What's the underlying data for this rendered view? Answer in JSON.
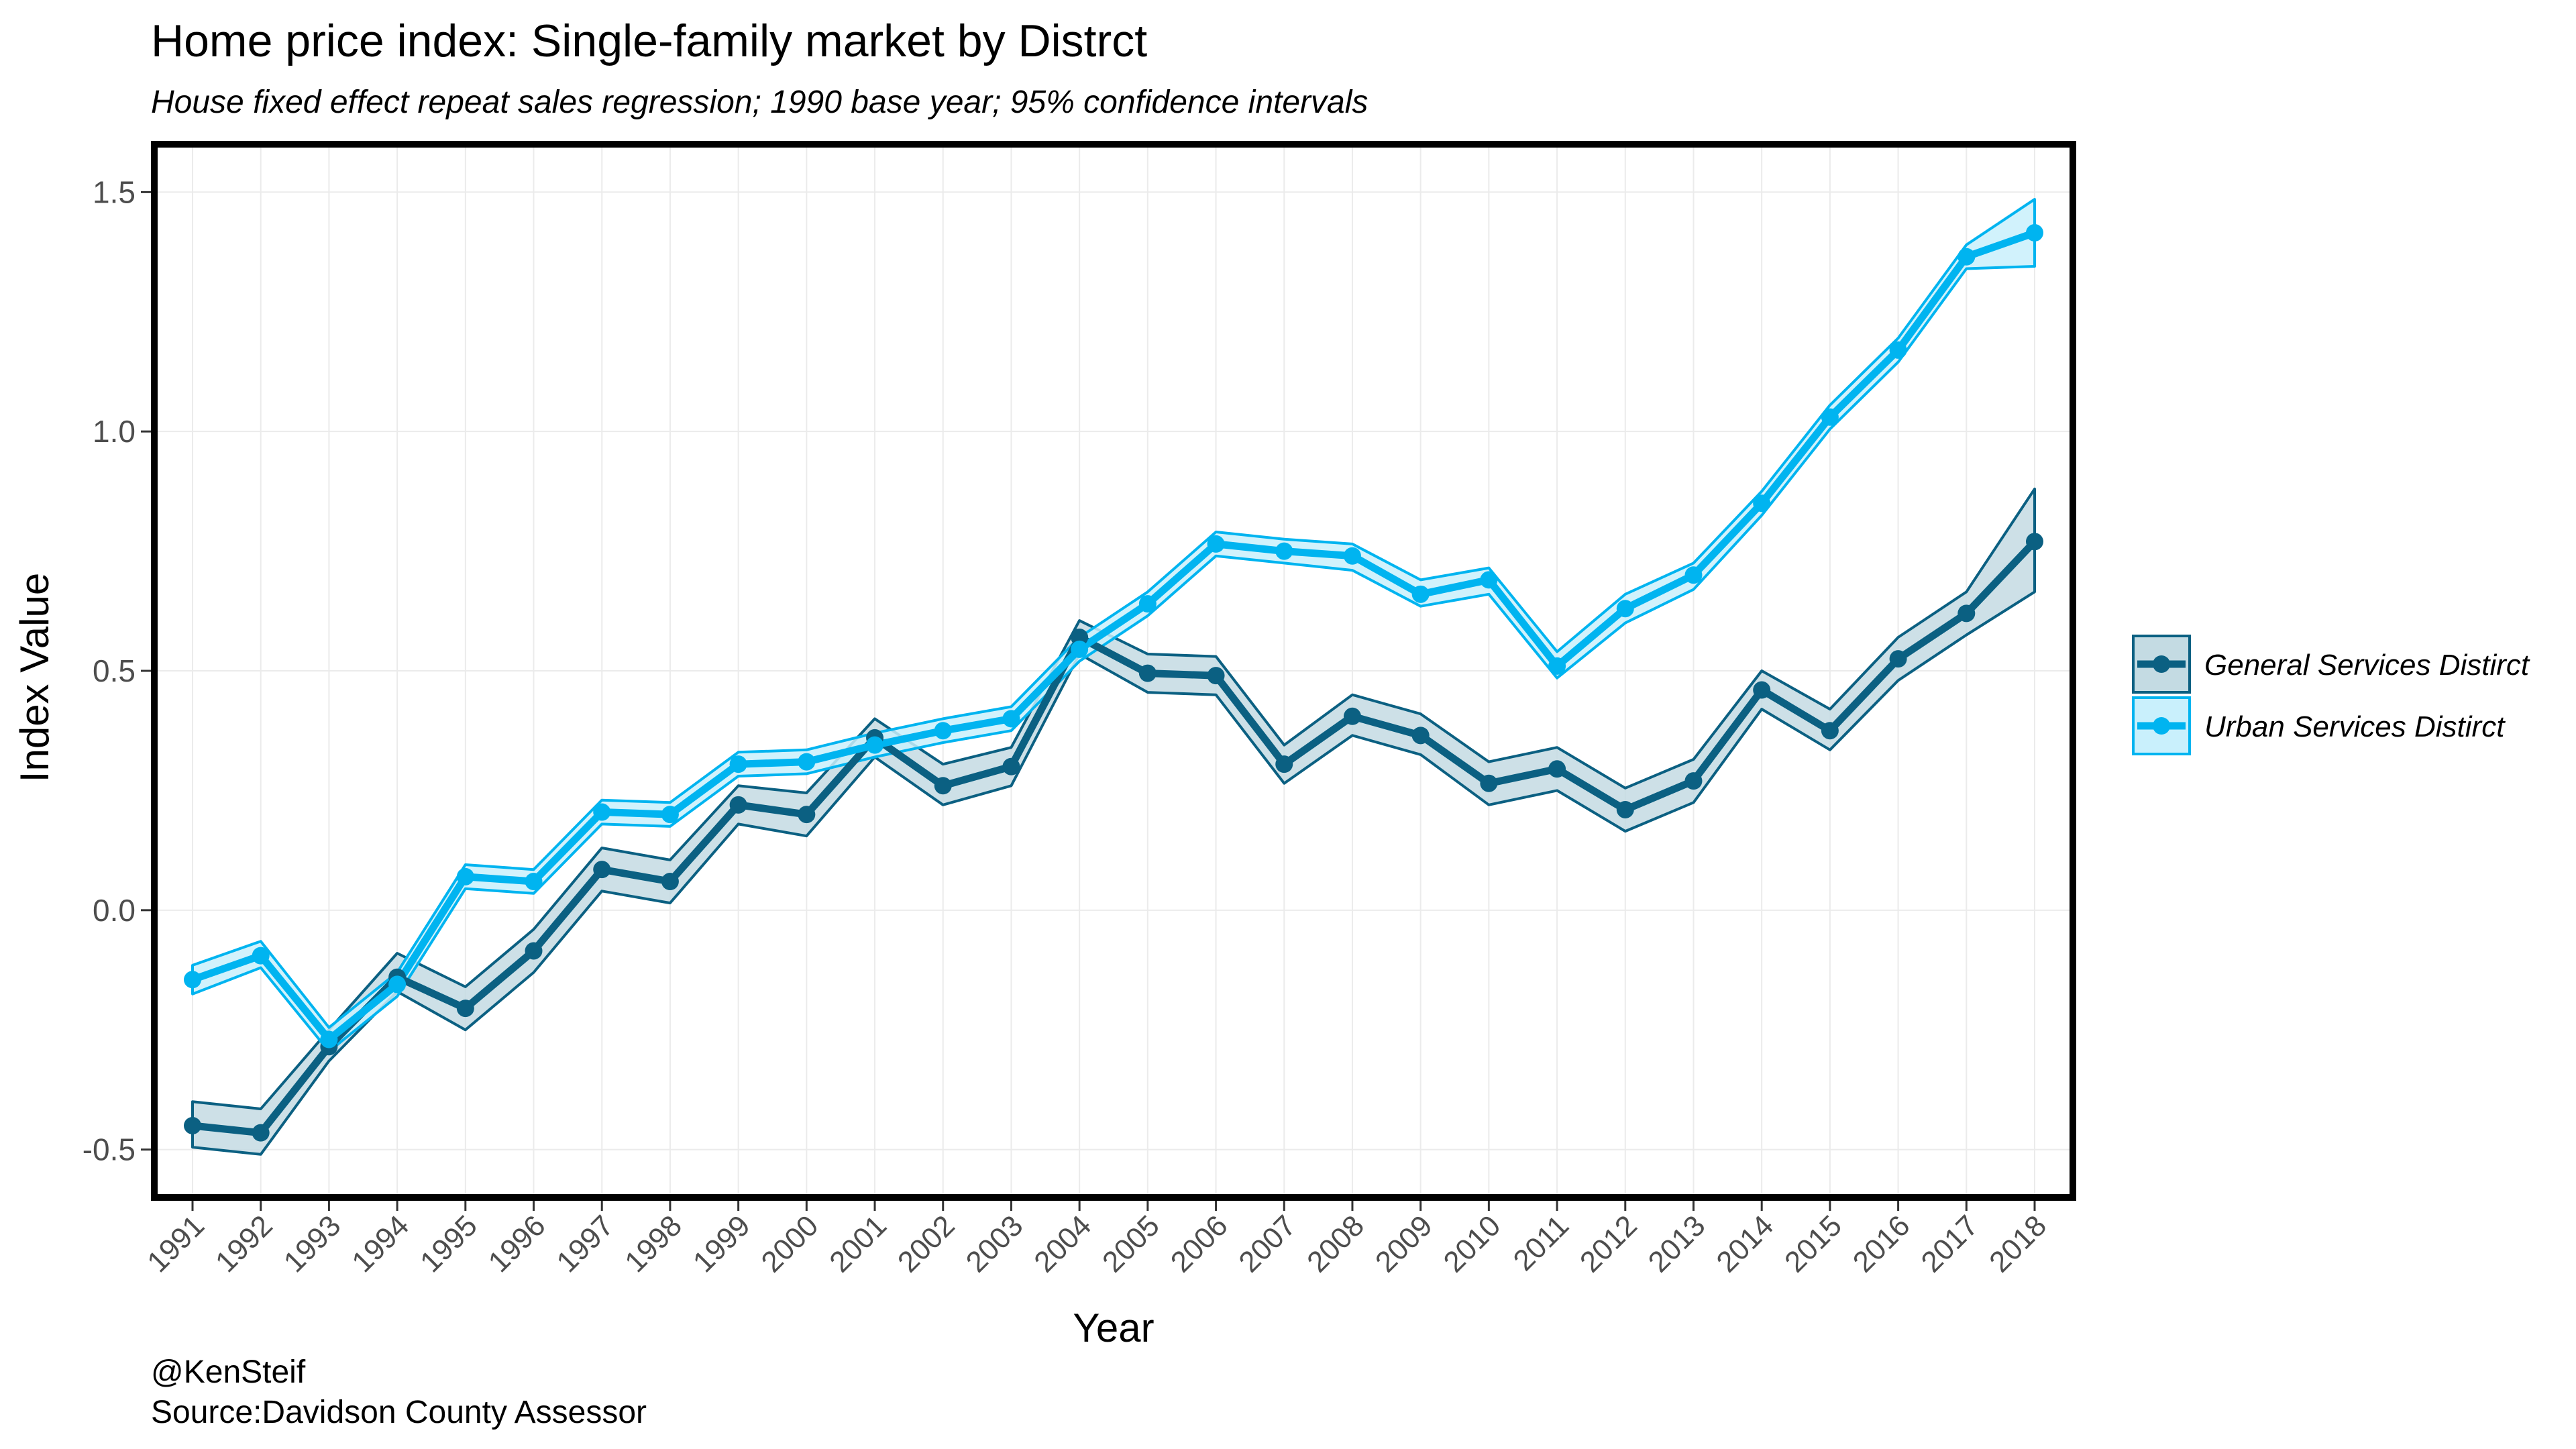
{
  "chart_data": {
    "type": "line",
    "title": "Home price index: Single-family market by Distrct",
    "subtitle": "House fixed effect repeat sales regression; 1990 base year; 95% confidence intervals",
    "xlabel": "Year",
    "ylabel": "Index Value",
    "ylim": [
      -0.6,
      1.6
    ],
    "yticks": [
      -0.5,
      0.0,
      0.5,
      1.0,
      1.5
    ],
    "ytick_labels": [
      "-0.5",
      "0.0",
      "0.5",
      "1.0",
      "1.5"
    ],
    "x": [
      1991,
      1992,
      1993,
      1994,
      1995,
      1996,
      1997,
      1998,
      1999,
      2000,
      2001,
      2002,
      2003,
      2004,
      2005,
      2006,
      2007,
      2008,
      2009,
      2010,
      2011,
      2012,
      2013,
      2014,
      2015,
      2016,
      2017,
      2018
    ],
    "xtick_labels": [
      "1991",
      "1992",
      "1993",
      "1994",
      "1995",
      "1996",
      "1997",
      "1998",
      "1999",
      "2000",
      "2001",
      "2002",
      "2003",
      "2004",
      "2005",
      "2006",
      "2007",
      "2008",
      "2009",
      "2010",
      "2011",
      "2012",
      "2013",
      "2014",
      "2015",
      "2016",
      "2017",
      "2018"
    ],
    "grid": true,
    "legend_position": "right",
    "series": [
      {
        "name": "General Services Distirct",
        "color": "#0b6082",
        "fill": "#c4dbe3",
        "values": [
          -0.45,
          -0.465,
          -0.285,
          -0.14,
          -0.205,
          -0.085,
          0.085,
          0.06,
          0.22,
          0.2,
          0.36,
          0.26,
          0.3,
          0.57,
          0.495,
          0.49,
          0.305,
          0.405,
          0.365,
          0.265,
          0.295,
          0.21,
          0.27,
          0.46,
          0.375,
          0.525,
          0.62,
          0.77
        ],
        "lower": [
          -0.495,
          -0.51,
          -0.315,
          -0.17,
          -0.25,
          -0.13,
          0.04,
          0.015,
          0.18,
          0.155,
          0.32,
          0.22,
          0.26,
          0.535,
          0.455,
          0.45,
          0.265,
          0.365,
          0.325,
          0.22,
          0.25,
          0.165,
          0.225,
          0.42,
          0.335,
          0.48,
          0.575,
          0.665
        ],
        "upper": [
          -0.4,
          -0.415,
          -0.25,
          -0.09,
          -0.16,
          -0.04,
          0.13,
          0.105,
          0.26,
          0.245,
          0.4,
          0.305,
          0.34,
          0.605,
          0.535,
          0.53,
          0.345,
          0.45,
          0.41,
          0.31,
          0.34,
          0.255,
          0.315,
          0.5,
          0.42,
          0.57,
          0.665,
          0.88
        ]
      },
      {
        "name": "Urban Services Distirct",
        "color": "#00b4f0",
        "fill": "#c9f0fc",
        "values": [
          -0.145,
          -0.095,
          -0.27,
          -0.155,
          0.07,
          0.06,
          0.205,
          0.2,
          0.305,
          0.31,
          0.345,
          0.375,
          0.4,
          0.545,
          0.64,
          0.765,
          0.75,
          0.74,
          0.66,
          0.69,
          0.51,
          0.63,
          0.7,
          0.85,
          1.03,
          1.17,
          1.365,
          1.415
        ],
        "lower": [
          -0.175,
          -0.12,
          -0.295,
          -0.18,
          0.045,
          0.035,
          0.18,
          0.175,
          0.28,
          0.285,
          0.32,
          0.35,
          0.375,
          0.52,
          0.615,
          0.74,
          0.725,
          0.71,
          0.635,
          0.66,
          0.485,
          0.6,
          0.67,
          0.825,
          1.005,
          1.145,
          1.34,
          1.345
        ],
        "upper": [
          -0.115,
          -0.065,
          -0.245,
          -0.13,
          0.095,
          0.085,
          0.23,
          0.225,
          0.33,
          0.335,
          0.37,
          0.4,
          0.425,
          0.57,
          0.665,
          0.79,
          0.775,
          0.765,
          0.69,
          0.715,
          0.54,
          0.66,
          0.725,
          0.875,
          1.055,
          1.195,
          1.39,
          1.485
        ]
      }
    ]
  },
  "caption": {
    "line1": "@KenSteif",
    "line2": "Source:Davidson County Assessor"
  }
}
